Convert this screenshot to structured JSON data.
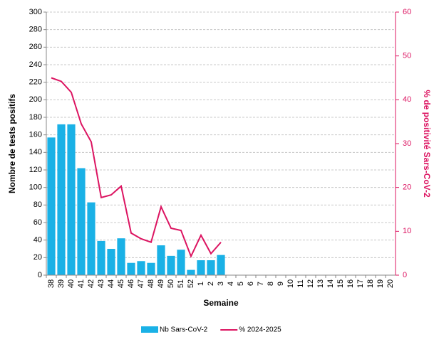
{
  "chart_data": {
    "type": "bar-line",
    "categories": [
      "38",
      "39",
      "40",
      "41",
      "42",
      "43",
      "44",
      "45",
      "46",
      "47",
      "48",
      "49",
      "50",
      "51",
      "52",
      "1",
      "2",
      "3",
      "4",
      "5",
      "6",
      "7",
      "8",
      "9",
      "10",
      "11",
      "12",
      "13",
      "14",
      "15",
      "16",
      "17",
      "18",
      "19",
      "20"
    ],
    "series": [
      {
        "name": "Nb Sars-CoV-2",
        "color": "#1ab1e6",
        "kind": "bar",
        "values": [
          157,
          172,
          172,
          122,
          83,
          39,
          30,
          42,
          14,
          16,
          14,
          34,
          22,
          29,
          6,
          17,
          17,
          23,
          null,
          null,
          null,
          null,
          null,
          null,
          null,
          null,
          null,
          null,
          null,
          null,
          null,
          null,
          null,
          null,
          null
        ]
      },
      {
        "name": "% 2024-2025",
        "color": "#dc1461",
        "kind": "line",
        "axis": "y2",
        "values": [
          45,
          44.2,
          41.7,
          34.5,
          30.4,
          17.7,
          18.3,
          20.3,
          9.6,
          8.3,
          7.5,
          15.6,
          10.7,
          10.2,
          4.3,
          9.1,
          4.9,
          7.5,
          null,
          null,
          null,
          null,
          null,
          null,
          null,
          null,
          null,
          null,
          null,
          null,
          null,
          null,
          null,
          null,
          null
        ]
      }
    ],
    "xlabel": "Semaine",
    "ylabel": "Nombre de tests positifs",
    "y2label": "% de positivité Sars-CoV-2",
    "ylim": [
      0,
      300
    ],
    "yticks": [
      0,
      20,
      40,
      60,
      80,
      100,
      120,
      140,
      160,
      180,
      200,
      220,
      240,
      260,
      280,
      300
    ],
    "y2lim": [
      0,
      60
    ],
    "y2ticks": [
      0,
      10,
      20,
      30,
      40,
      50,
      60
    ],
    "grid": true,
    "legend": "bottom"
  }
}
